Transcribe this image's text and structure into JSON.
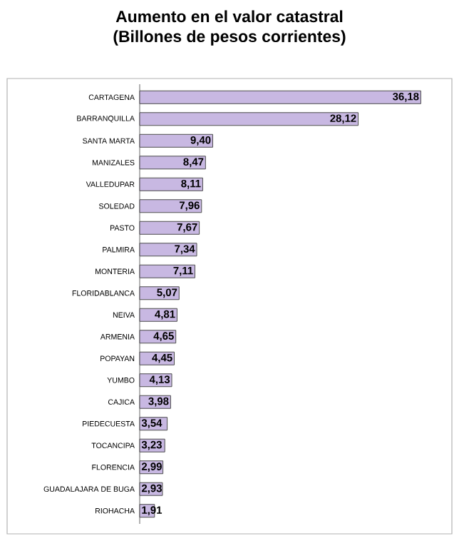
{
  "chart_data": {
    "type": "bar",
    "orientation": "horizontal",
    "title": "Aumento en el valor catastral\n(Billones de pesos corrientes)",
    "categories": [
      "CARTAGENA",
      "BARRANQUILLA",
      "SANTA MARTA",
      "MANIZALES",
      "VALLEDUPAR",
      "SOLEDAD",
      "PASTO",
      "PALMIRA",
      "MONTERIA",
      "FLORIDABLANCA",
      "NEIVA",
      "ARMENIA",
      "POPAYAN",
      "YUMBO",
      "CAJICA",
      "PIEDECUESTA",
      "TOCANCIPA",
      "FLORENCIA",
      "GUADALAJARA DE BUGA",
      "RIOHACHA"
    ],
    "values": [
      36.18,
      28.12,
      9.4,
      8.47,
      8.11,
      7.96,
      7.67,
      7.34,
      7.11,
      5.07,
      4.81,
      4.65,
      4.45,
      4.13,
      3.98,
      3.54,
      3.23,
      2.99,
      2.93,
      1.91
    ],
    "value_labels": [
      "36,18",
      "28,12",
      "9,40",
      "8,47",
      "8,11",
      "7,96",
      "7,67",
      "7,34",
      "7,11",
      "5,07",
      "4,81",
      "4,65",
      "4,45",
      "4,13",
      "3,98",
      "3,54",
      "3,23",
      "2,99",
      "2,93",
      "1,91"
    ],
    "color": "#c8b8e2",
    "tick_labels": "y"
  }
}
